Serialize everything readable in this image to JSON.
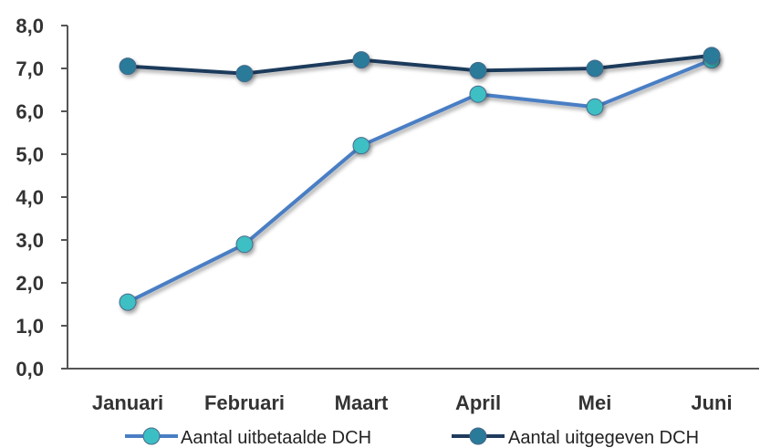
{
  "chart_data": {
    "type": "line",
    "categories": [
      "Januari",
      "Februari",
      "Maart",
      "April",
      "Mei",
      "Juni"
    ],
    "y_tick_labels": [
      "0,0",
      "1,0",
      "2,0",
      "3,0",
      "4,0",
      "5,0",
      "6,0",
      "7,0",
      "8,0"
    ],
    "ylim": [
      0,
      8
    ],
    "grid": false,
    "legend_position": "bottom",
    "series": [
      {
        "name": "Aantal uitbetaalde DCH",
        "values": [
          1.55,
          2.9,
          5.2,
          6.4,
          6.1,
          7.2
        ],
        "color": "#4a7ec4",
        "marker_color": "#3cbfc4"
      },
      {
        "name": "Aantal uitgegeven DCH",
        "values": [
          7.05,
          6.88,
          7.2,
          6.95,
          7.0,
          7.3
        ],
        "color": "#1f3b5c",
        "marker_color": "#2a7a9a"
      }
    ]
  }
}
